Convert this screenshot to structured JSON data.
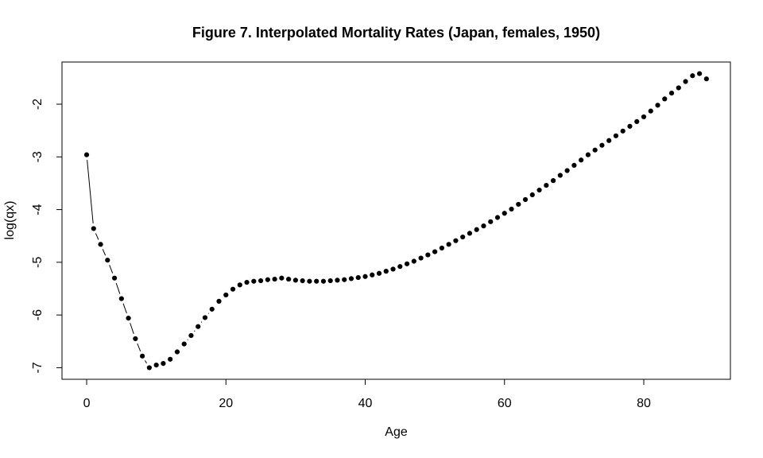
{
  "figure": {
    "background_color": "#ffffff",
    "foreground_color": "#000000",
    "point_color": "#000000",
    "line_color": "#000000"
  },
  "chart_data": {
    "type": "scatter",
    "style": "points-with-connecting-line-gaps",
    "title": "Figure 7. Interpolated Mortality Rates (Japan, females, 1950)",
    "xlabel": "Age",
    "ylabel": "log(qx)",
    "x_ticks": [
      0,
      20,
      40,
      60,
      80
    ],
    "y_ticks": [
      -7,
      -6,
      -5,
      -4,
      -3,
      -2
    ],
    "xlim": [
      -3.54,
      92.44
    ],
    "ylim": [
      -7.22,
      -1.2
    ],
    "grid": "off",
    "legend": "none",
    "x": [
      0,
      1,
      2,
      3,
      4,
      5,
      6,
      7,
      8,
      9,
      10,
      11,
      12,
      13,
      14,
      15,
      16,
      17,
      18,
      19,
      20,
      21,
      22,
      23,
      24,
      25,
      26,
      27,
      28,
      29,
      30,
      31,
      32,
      33,
      34,
      35,
      36,
      37,
      38,
      39,
      40,
      41,
      42,
      43,
      44,
      45,
      46,
      47,
      48,
      49,
      50,
      51,
      52,
      53,
      54,
      55,
      56,
      57,
      58,
      59,
      60,
      61,
      62,
      63,
      64,
      65,
      66,
      67,
      68,
      69,
      70,
      71,
      72,
      73,
      74,
      75,
      76,
      77,
      78,
      79,
      80,
      81,
      82,
      83,
      84,
      85,
      86,
      87,
      88,
      89
    ],
    "y": [
      -2.96,
      -4.36,
      -4.66,
      -4.96,
      -5.3,
      -5.69,
      -6.06,
      -6.45,
      -6.78,
      -7.0,
      -6.95,
      -6.92,
      -6.84,
      -6.7,
      -6.55,
      -6.39,
      -6.22,
      -6.05,
      -5.89,
      -5.74,
      -5.62,
      -5.51,
      -5.43,
      -5.38,
      -5.36,
      -5.35,
      -5.33,
      -5.32,
      -5.3,
      -5.32,
      -5.34,
      -5.35,
      -5.36,
      -5.36,
      -5.36,
      -5.35,
      -5.34,
      -5.33,
      -5.31,
      -5.29,
      -5.27,
      -5.24,
      -5.21,
      -5.17,
      -5.13,
      -5.08,
      -5.03,
      -4.98,
      -4.92,
      -4.86,
      -4.8,
      -4.73,
      -4.66,
      -4.59,
      -4.52,
      -4.45,
      -4.38,
      -4.31,
      -4.23,
      -4.15,
      -4.07,
      -3.99,
      -3.9,
      -3.81,
      -3.72,
      -3.63,
      -3.54,
      -3.45,
      -3.35,
      -3.26,
      -3.16,
      -3.06,
      -2.96,
      -2.87,
      -2.78,
      -2.69,
      -2.6,
      -2.51,
      -2.42,
      -2.33,
      -2.24,
      -2.13,
      -2.02,
      -1.9,
      -1.79,
      -1.69,
      -1.57,
      -1.46,
      -1.42,
      -1.52
    ]
  }
}
